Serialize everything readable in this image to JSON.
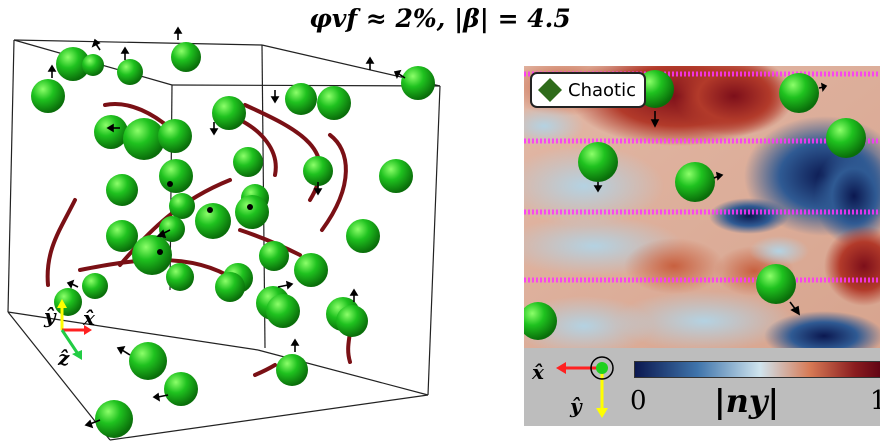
{
  "title": "φvf ≈ 2%, |β| = 4.5",
  "badge": {
    "label": "Chaotic",
    "icon": "diamond-icon",
    "color": "#2e6b1a"
  },
  "colorbar": {
    "label": "|ny|",
    "min_label": "0",
    "max_label": "1",
    "colors": [
      "#0b1850",
      "#3f74ab",
      "#cfe4ee",
      "#d77a55",
      "#8a1c1f",
      "#5a0012"
    ]
  },
  "axes_3d": {
    "y": "ŷ",
    "x": "x̂",
    "z": "ẑ"
  },
  "axes_2d": {
    "x": "x̂",
    "y": "ŷ"
  },
  "colors": {
    "sphere": "#1fbf1f",
    "filament": "#7a1015",
    "slice_lines": "#ff33ff",
    "axis_x": "#ff2020",
    "axis_y": "#ffff00",
    "axis_z": "#22cc44"
  }
}
